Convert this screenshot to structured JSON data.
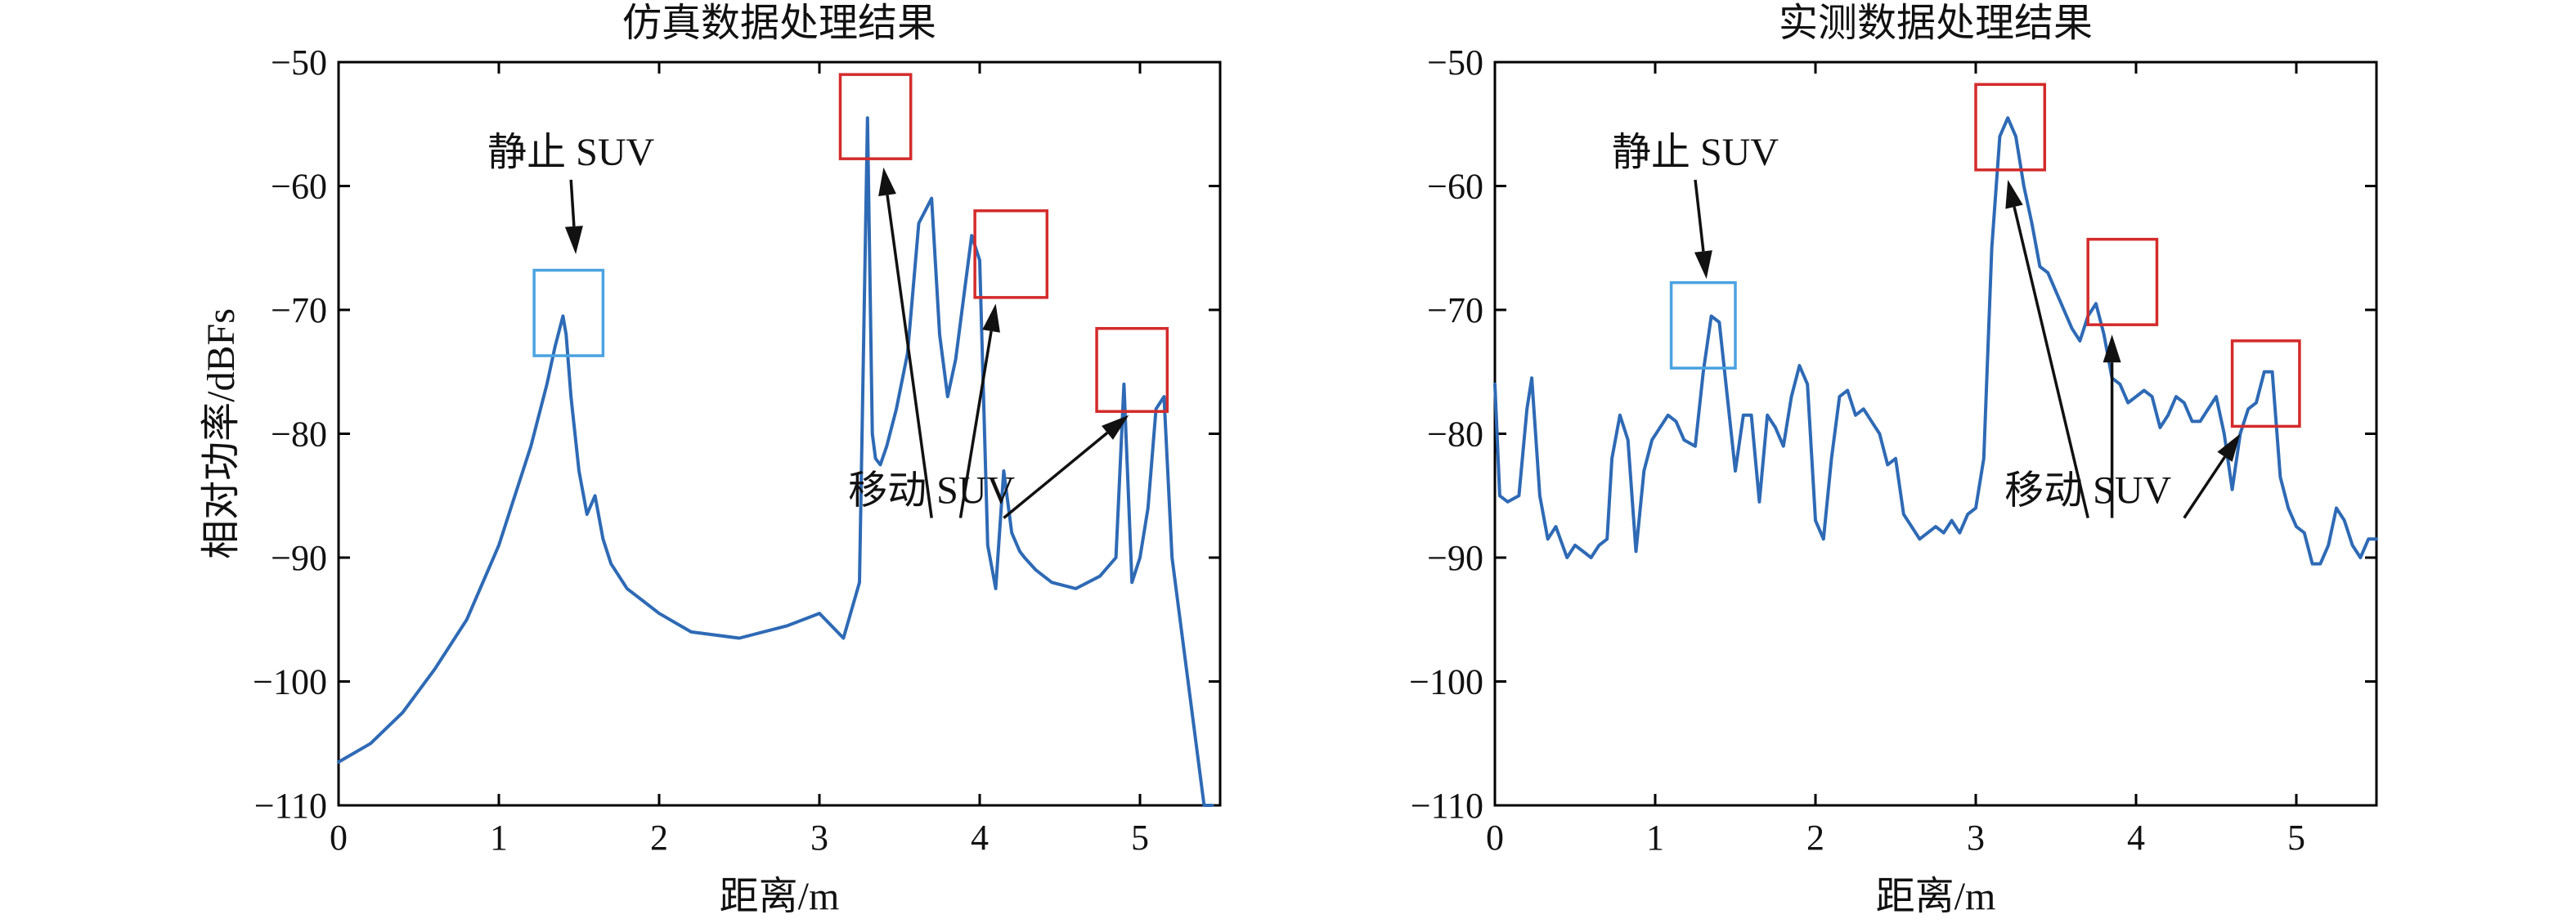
{
  "colors": {
    "line": "#2e6ab5",
    "static_box": "#4aa3e0",
    "moving_box": "#d42b2b"
  },
  "chart_data": [
    {
      "type": "line",
      "title": "仿真数据处理结果",
      "xlabel": "距离/m",
      "ylabel": "相对功率/dBFs",
      "xlim": [
        0,
        5.5
      ],
      "ylim": [
        -110,
        -50
      ],
      "xticks": [
        0,
        1,
        2,
        3,
        4,
        5
      ],
      "yticks": [
        -50,
        -60,
        -70,
        -80,
        -90,
        -100,
        -110
      ],
      "ytick_labels": [
        "−50",
        "−60",
        "−70",
        "−80",
        "−90",
        "−100",
        "−110"
      ],
      "grid": false,
      "series": [
        {
          "x": [
            0,
            0.2,
            0.4,
            0.6,
            0.8,
            1.0,
            1.1,
            1.2,
            1.3,
            1.35,
            1.4,
            1.42,
            1.45,
            1.5,
            1.55,
            1.6,
            1.65,
            1.7,
            1.8,
            1.9,
            2.0,
            2.2,
            2.5,
            2.8,
            3.0,
            3.15,
            3.25,
            3.3,
            3.33,
            3.35,
            3.38,
            3.42,
            3.48,
            3.55,
            3.62,
            3.7,
            3.75,
            3.8,
            3.85,
            3.9,
            3.95,
            4.0,
            4.05,
            4.1,
            4.15,
            4.2,
            4.25,
            4.28,
            4.35,
            4.45,
            4.6,
            4.75,
            4.85,
            4.9,
            4.95,
            5.0,
            5.05,
            5.1,
            5.15,
            5.2,
            5.25,
            5.3,
            5.4,
            5.45
          ],
          "y": [
            -106.5,
            -105,
            -102.5,
            -99,
            -95,
            -89,
            -85,
            -81,
            -76,
            -73,
            -70.5,
            -72,
            -77,
            -83,
            -86.5,
            -85,
            -88.5,
            -90.5,
            -92.5,
            -93.5,
            -94.5,
            -96,
            -96.5,
            -95.5,
            -94.5,
            -96.5,
            -92,
            -54.5,
            -80,
            -82,
            -82.5,
            -81,
            -78,
            -73.5,
            -63,
            -61,
            -72,
            -77,
            -74,
            -69,
            -64,
            -66,
            -89,
            -92.5,
            -83,
            -88,
            -89.5,
            -90,
            -91,
            -92,
            -92.5,
            -91.5,
            -90,
            -76,
            -92,
            -90,
            -86,
            -78,
            -77,
            -90,
            -95,
            -100,
            -110,
            -110
          ]
        }
      ],
      "annotations": [
        {
          "text": "静止 SUV",
          "kind": "static",
          "box_x": [
            1.22,
            1.65
          ],
          "box_y": [
            -66.8,
            -73.7
          ],
          "arrow_from": [
            1.45,
            -59.5
          ],
          "arrow_to": [
            1.48,
            -65.5
          ]
        },
        {
          "text": "移动 SUV",
          "kind": "moving",
          "box_x": [
            3.13,
            3.57
          ],
          "box_y": [
            -51,
            -57.8
          ],
          "arrow_from": [
            3.7,
            -86.8
          ],
          "arrow_to": [
            3.4,
            -58.5
          ]
        },
        {
          "text": "",
          "kind": "moving",
          "box_x": [
            3.97,
            4.42
          ],
          "box_y": [
            -62,
            -69
          ],
          "arrow_from": [
            3.88,
            -86.8
          ],
          "arrow_to": [
            4.1,
            -69.5
          ]
        },
        {
          "text": "",
          "kind": "moving",
          "box_x": [
            4.73,
            5.17
          ],
          "box_y": [
            -71.5,
            -78.2
          ],
          "arrow_from": [
            4.15,
            -86.8
          ],
          "arrow_to": [
            4.93,
            -78.5
          ]
        }
      ]
    },
    {
      "type": "line",
      "title": "实测数据处理结果",
      "xlabel": "距离/m",
      "ylabel": "",
      "xlim": [
        0,
        5.5
      ],
      "ylim": [
        -110,
        -50
      ],
      "xticks": [
        0,
        1,
        2,
        3,
        4,
        5
      ],
      "yticks": [
        -50,
        -60,
        -70,
        -80,
        -90,
        -100,
        -110
      ],
      "ytick_labels": [
        "−50",
        "−60",
        "−70",
        "−80",
        "−90",
        "−100",
        "−110"
      ],
      "grid": false,
      "series": [
        {
          "x": [
            0,
            0.03,
            0.08,
            0.15,
            0.2,
            0.23,
            0.28,
            0.33,
            0.38,
            0.45,
            0.5,
            0.55,
            0.6,
            0.65,
            0.7,
            0.73,
            0.78,
            0.83,
            0.88,
            0.93,
            0.98,
            1.03,
            1.08,
            1.13,
            1.18,
            1.25,
            1.3,
            1.35,
            1.4,
            1.45,
            1.5,
            1.55,
            1.6,
            1.65,
            1.7,
            1.75,
            1.8,
            1.85,
            1.9,
            1.95,
            2.0,
            2.05,
            2.1,
            2.15,
            2.2,
            2.25,
            2.3,
            2.35,
            2.4,
            2.45,
            2.5,
            2.55,
            2.6,
            2.65,
            2.7,
            2.75,
            2.8,
            2.85,
            2.9,
            2.95,
            3.0,
            3.05,
            3.1,
            3.15,
            3.2,
            3.25,
            3.3,
            3.35,
            3.4,
            3.45,
            3.5,
            3.55,
            3.6,
            3.65,
            3.7,
            3.75,
            3.8,
            3.85,
            3.9,
            3.95,
            4.0,
            4.05,
            4.1,
            4.15,
            4.2,
            4.25,
            4.3,
            4.35,
            4.4,
            4.45,
            4.5,
            4.55,
            4.6,
            4.65,
            4.7,
            4.75,
            4.8,
            4.85,
            4.9,
            4.95,
            5.0,
            5.05,
            5.1,
            5.15,
            5.2,
            5.25,
            5.3,
            5.35,
            5.4,
            5.45,
            5.5
          ],
          "y": [
            -76,
            -85,
            -85.5,
            -85,
            -78,
            -75.5,
            -85,
            -88.5,
            -87.5,
            -90,
            -89,
            -89.5,
            -90,
            -89,
            -88.5,
            -82,
            -78.5,
            -80.5,
            -89.5,
            -83,
            -80.5,
            -79.5,
            -78.5,
            -79,
            -80.5,
            -81,
            -75,
            -70.5,
            -71,
            -77,
            -83,
            -78.5,
            -78.5,
            -85.5,
            -78.5,
            -79.5,
            -81,
            -77,
            -74.5,
            -76,
            -87,
            -88.5,
            -82,
            -77,
            -76.5,
            -78.5,
            -78,
            -79,
            -80,
            -82.5,
            -82,
            -86.5,
            -87.5,
            -88.5,
            -88,
            -87.5,
            -88,
            -87,
            -88,
            -86.5,
            -86,
            -82,
            -65,
            -56,
            -54.5,
            -56,
            -60,
            -63,
            -66.5,
            -67,
            -68.5,
            -70,
            -71.5,
            -72.5,
            -70.5,
            -69.5,
            -72,
            -75.5,
            -76,
            -77.5,
            -77,
            -76.5,
            -77,
            -79.5,
            -78.5,
            -77,
            -77.5,
            -79,
            -79,
            -78,
            -77,
            -80,
            -84.5,
            -80,
            -78,
            -77.5,
            -75,
            -75,
            -83.5,
            -86,
            -87.5,
            -88,
            -90.5,
            -90.5,
            -89,
            -86,
            -87,
            -89,
            -90,
            -88.5,
            -88.5
          ]
        }
      ],
      "annotations": [
        {
          "text": "静止 SUV",
          "kind": "static",
          "box_x": [
            1.1,
            1.5
          ],
          "box_y": [
            -67.8,
            -74.7
          ],
          "arrow_from": [
            1.25,
            -59.5
          ],
          "arrow_to": [
            1.32,
            -67.5
          ]
        },
        {
          "text": "移动 SUV",
          "kind": "moving",
          "box_x": [
            3.0,
            3.43
          ],
          "box_y": [
            -51.8,
            -58.7
          ],
          "arrow_from": [
            3.7,
            -86.8
          ],
          "arrow_to": [
            3.2,
            -59.5
          ]
        },
        {
          "text": "",
          "kind": "moving",
          "box_x": [
            3.7,
            4.13
          ],
          "box_y": [
            -64.3,
            -71.2
          ],
          "arrow_from": [
            3.85,
            -86.8
          ],
          "arrow_to": [
            3.85,
            -72
          ]
        },
        {
          "text": "",
          "kind": "moving",
          "box_x": [
            4.6,
            5.02
          ],
          "box_y": [
            -72.5,
            -79.4
          ],
          "arrow_from": [
            4.3,
            -86.8
          ],
          "arrow_to": [
            4.65,
            -80
          ]
        }
      ]
    }
  ]
}
